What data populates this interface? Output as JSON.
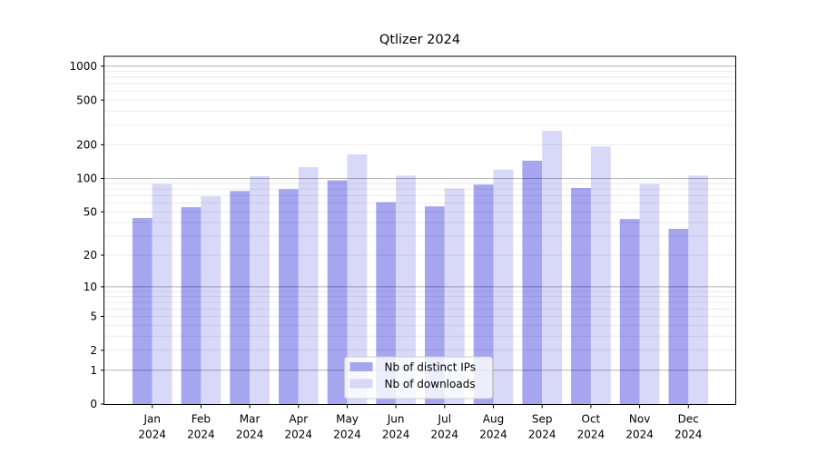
{
  "chart_data": {
    "type": "bar",
    "title": "Qtlizer 2024",
    "categories": [
      "Jan 2024",
      "Feb 2024",
      "Mar 2024",
      "Apr 2024",
      "May 2024",
      "Jun 2024",
      "Jul 2024",
      "Aug 2024",
      "Sep 2024",
      "Oct 2024",
      "Nov 2024",
      "Dec 2024"
    ],
    "series": [
      {
        "name": "Nb of distinct IPs",
        "color": "#a5a5f0",
        "values": [
          44,
          55,
          77,
          80,
          96,
          61,
          56,
          88,
          144,
          82,
          43,
          35
        ]
      },
      {
        "name": "Nb of downloads",
        "color": "#d8d8f8",
        "values": [
          89,
          69,
          105,
          126,
          164,
          106,
          81,
          120,
          266,
          193,
          89,
          106
        ]
      }
    ],
    "yscale": "log1p",
    "yticks": [
      0,
      1,
      2,
      5,
      10,
      20,
      50,
      100,
      200,
      500,
      1000
    ],
    "ylim": [
      0,
      1250
    ],
    "xlabel": "",
    "ylabel": "",
    "grid": {
      "major_at": [
        1,
        10,
        100,
        1000
      ],
      "minor_multiples": [
        2,
        3,
        4,
        5,
        6,
        7,
        8,
        9
      ],
      "minor_decades": [
        1,
        10,
        100
      ]
    },
    "legend": {
      "position": "lower center",
      "labels": [
        "Nb of distinct IPs",
        "Nb of downloads"
      ]
    }
  },
  "colors": {
    "grid_major": "rgba(0,0,0,0.30)",
    "grid_minor": "rgba(0,0,0,0.08)",
    "spine": "#000000",
    "text": "#000000",
    "legend_border": "#cccccc",
    "legend_bg": "rgba(255,255,255,0.8)"
  }
}
